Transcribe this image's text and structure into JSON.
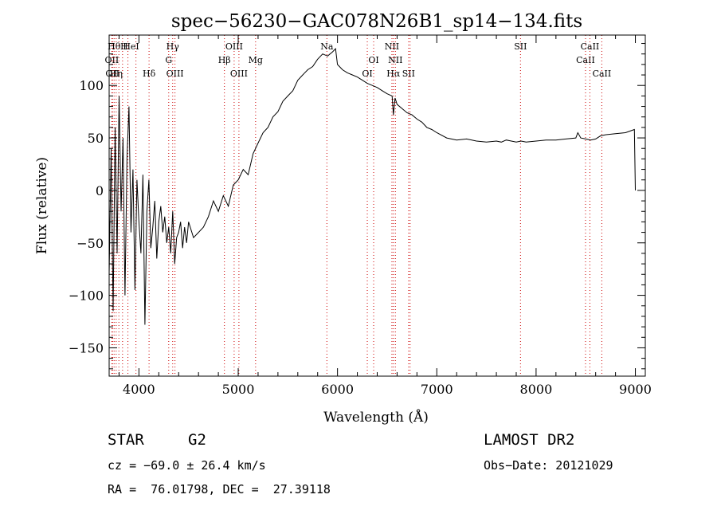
{
  "chart_data": {
    "type": "line",
    "title": "spec−56230−GAC078N26B1_sp14−134.fits",
    "xlabel": "Wavelength (Å)",
    "ylabel": "Flux (relative)",
    "xlim": [
      3700,
      9100
    ],
    "ylim": [
      -177,
      148
    ],
    "x_ticks": [
      4000,
      5000,
      6000,
      7000,
      8000,
      9000
    ],
    "x_tick_labels": [
      "4000",
      "5000",
      "6000",
      "7000",
      "8000",
      "9000"
    ],
    "y_ticks": [
      100,
      50,
      0,
      -50,
      -100,
      -150
    ],
    "y_tick_labels": [
      "100",
      "50",
      "0",
      "−50",
      "−100",
      "−150"
    ],
    "grid": false,
    "series": [
      {
        "x": [
          3700,
          3720,
          3740,
          3760,
          3780,
          3800,
          3820,
          3840,
          3860,
          3880,
          3900,
          3920,
          3940,
          3960,
          3980,
          4000,
          4020,
          4040,
          4060,
          4080,
          4100,
          4120,
          4140,
          4160,
          4180,
          4200,
          4220,
          4240,
          4260,
          4280,
          4300,
          4320,
          4340,
          4360,
          4380,
          4400,
          4420,
          4440,
          4460,
          4480,
          4500,
          4550,
          4600,
          4650,
          4700,
          4750,
          4800,
          4850,
          4900,
          4950,
          5000,
          5050,
          5100,
          5150,
          5200,
          5250,
          5300,
          5350,
          5400,
          5450,
          5500,
          5550,
          5600,
          5650,
          5700,
          5750,
          5800,
          5850,
          5900,
          5950,
          5980,
          6000,
          6020,
          6050,
          6100,
          6150,
          6200,
          6250,
          6300,
          6350,
          6400,
          6450,
          6500,
          6550,
          6563,
          6580,
          6600,
          6650,
          6700,
          6750,
          6800,
          6850,
          6900,
          6950,
          7000,
          7100,
          7200,
          7300,
          7400,
          7500,
          7600,
          7650,
          7700,
          7750,
          7800,
          7850,
          7900,
          8000,
          8100,
          8200,
          8300,
          8400,
          8420,
          8450,
          8500,
          8550,
          8600,
          8650,
          8700,
          8800,
          8900,
          8990,
          9000
        ],
        "y": [
          -80,
          40,
          -115,
          60,
          -60,
          90,
          -20,
          50,
          -100,
          30,
          80,
          -40,
          20,
          -95,
          10,
          -30,
          -60,
          15,
          -128,
          -20,
          10,
          -55,
          -35,
          -10,
          -65,
          -30,
          -15,
          -40,
          -25,
          -50,
          -35,
          -60,
          -20,
          -70,
          -45,
          -40,
          -30,
          -55,
          -35,
          -50,
          -30,
          -45,
          -40,
          -35,
          -25,
          -10,
          -20,
          -5,
          -15,
          5,
          10,
          20,
          15,
          35,
          45,
          55,
          60,
          70,
          75,
          85,
          90,
          95,
          105,
          110,
          115,
          118,
          125,
          130,
          128,
          132,
          135,
          120,
          118,
          115,
          112,
          110,
          108,
          105,
          102,
          100,
          98,
          95,
          92,
          90,
          72,
          88,
          82,
          78,
          74,
          72,
          68,
          65,
          60,
          58,
          55,
          50,
          48,
          49,
          47,
          46,
          47,
          46,
          48,
          47,
          46,
          47,
          46,
          47,
          48,
          48,
          49,
          50,
          55,
          50,
          49,
          48,
          49,
          52,
          53,
          54,
          55,
          58,
          0
        ]
      }
    ],
    "line_markers": [
      {
        "wavelength": 3727,
        "labels": [
          "OII"
        ],
        "row": 1
      },
      {
        "wavelength": 3734,
        "labels": [
          "OII"
        ],
        "row": 2
      },
      {
        "wavelength": 3750,
        "labels": [
          "Hθ"
        ],
        "row": 0
      },
      {
        "wavelength": 3771,
        "labels": [
          "Hη"
        ],
        "row": 2
      },
      {
        "wavelength": 3798,
        "labels": [],
        "row": 0
      },
      {
        "wavelength": 3835,
        "labels": [],
        "row": 0
      },
      {
        "wavelength": 3889,
        "labels": [
          "H",
          "HeI"
        ],
        "row": 0
      },
      {
        "wavelength": 3970,
        "labels": [],
        "row": 0
      },
      {
        "wavelength": 4102,
        "labels": [
          "Hδ"
        ],
        "row": 2
      },
      {
        "wavelength": 4300,
        "labels": [
          "G"
        ],
        "row": 1
      },
      {
        "wavelength": 4340,
        "labels": [
          "Hγ"
        ],
        "row": 0
      },
      {
        "wavelength": 4363,
        "labels": [
          "OIII"
        ],
        "row": 2
      },
      {
        "wavelength": 4861,
        "labels": [
          "Hβ"
        ],
        "row": 1
      },
      {
        "wavelength": 4959,
        "labels": [
          "OIII"
        ],
        "row": 0
      },
      {
        "wavelength": 5007,
        "labels": [
          "OIII"
        ],
        "row": 2
      },
      {
        "wavelength": 5175,
        "labels": [
          "Mg"
        ],
        "row": 1
      },
      {
        "wavelength": 5893,
        "labels": [
          "Na"
        ],
        "row": 0
      },
      {
        "wavelength": 6300,
        "labels": [
          "OI"
        ],
        "row": 2
      },
      {
        "wavelength": 6364,
        "labels": [
          "OI"
        ],
        "row": 1
      },
      {
        "wavelength": 6548,
        "labels": [
          "NII"
        ],
        "row": 0
      },
      {
        "wavelength": 6563,
        "labels": [
          "Hα"
        ],
        "row": 2
      },
      {
        "wavelength": 6583,
        "labels": [
          "NII"
        ],
        "row": 1
      },
      {
        "wavelength": 6716,
        "labels": [
          "SII"
        ],
        "row": 2
      },
      {
        "wavelength": 6731,
        "labels": [],
        "row": 0
      },
      {
        "wavelength": 7843,
        "labels": [
          "SII"
        ],
        "row": 0
      },
      {
        "wavelength": 8498,
        "labels": [
          "CaII"
        ],
        "row": 1
      },
      {
        "wavelength": 8542,
        "labels": [
          "CaII"
        ],
        "row": 0
      },
      {
        "wavelength": 8662,
        "labels": [
          "CaII"
        ],
        "row": 2
      }
    ],
    "marker_color": "#cc0000",
    "line_color": "#000000"
  },
  "info": {
    "object_class": "STAR",
    "subclass": "G2",
    "survey": "LAMOST DR2",
    "cz": "cz = −69.0 ± 26.4 km/s",
    "obs_date": "Obs−Date: 20121029",
    "coords": "RA =  76.01798, DEC =  27.39118"
  }
}
